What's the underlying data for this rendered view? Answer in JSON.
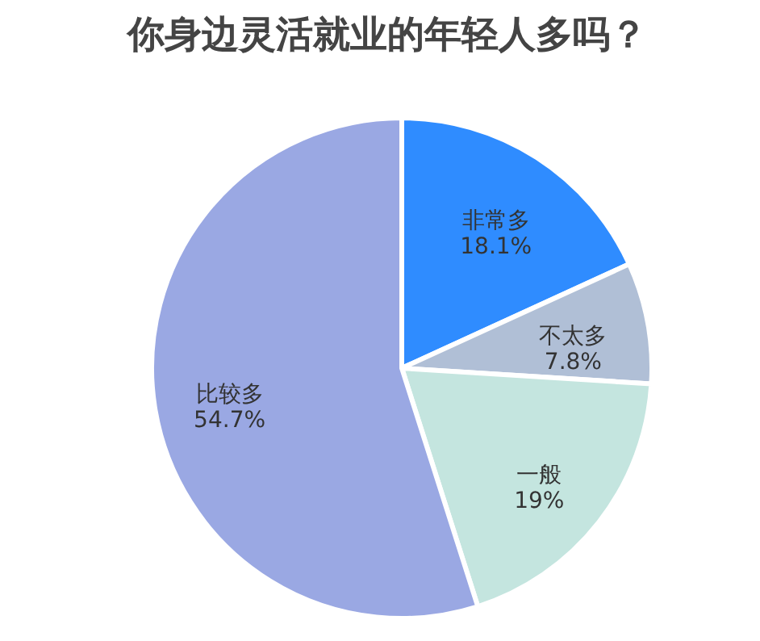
{
  "chart_data": {
    "type": "pie",
    "title": "你身边灵活就业的年轻人多吗？",
    "categories": [
      "非常多",
      "不太多",
      "一般",
      "比较多"
    ],
    "values": [
      18.1,
      7.8,
      19,
      54.7
    ],
    "value_labels": [
      "18.1%",
      "7.8%",
      "19%",
      "54.7%"
    ],
    "colors": [
      "#2f8cff",
      "#b0bfd6",
      "#c4e5df",
      "#9aa8e3"
    ]
  }
}
